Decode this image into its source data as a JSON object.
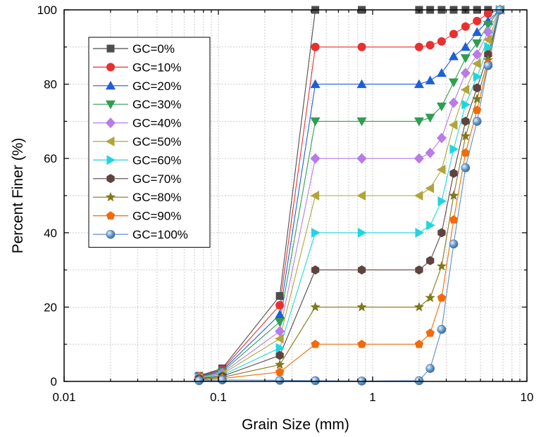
{
  "chart_data": {
    "type": "line",
    "xlabel": "Grain Size (mm)",
    "ylabel": "Percent Finer (%)",
    "x_scale": "log",
    "xlim": [
      0.01,
      10
    ],
    "ylim": [
      0,
      100
    ],
    "x_ticks": [
      0.01,
      0.1,
      1,
      10
    ],
    "x_tick_labels": [
      "0.01",
      "0.1",
      "1",
      "10"
    ],
    "y_ticks": [
      0,
      20,
      40,
      60,
      80,
      100
    ],
    "y_tick_labels": [
      "0",
      "20",
      "40",
      "60",
      "80",
      "100"
    ],
    "grid": true,
    "legend_position": "top-left",
    "x": [
      0.075,
      0.106,
      0.25,
      0.425,
      0.85,
      2.0,
      2.36,
      2.8,
      3.35,
      4.0,
      4.75,
      5.6,
      6.7
    ],
    "series": [
      {
        "name": "GC=0%",
        "color": "#4d4d4d",
        "marker": "square",
        "values": [
          1.5,
          3.5,
          23,
          100,
          100,
          100,
          100,
          100,
          100,
          100,
          100,
          100,
          100
        ]
      },
      {
        "name": "GC=10%",
        "color": "#e83030",
        "marker": "circle",
        "values": [
          1.4,
          3.2,
          20.5,
          90,
          90,
          90,
          90.5,
          91.5,
          93.5,
          95.5,
          97,
          99,
          100
        ]
      },
      {
        "name": "GC=20%",
        "color": "#1f5fd6",
        "marker": "triangle-up",
        "values": [
          1.3,
          2.9,
          18,
          80,
          80,
          80,
          81,
          83,
          87.5,
          90,
          94,
          97,
          100
        ]
      },
      {
        "name": "GC=30%",
        "color": "#2e9e4f",
        "marker": "triangle-down",
        "values": [
          1.2,
          2.6,
          16,
          70,
          70,
          70,
          71,
          74,
          80.5,
          87,
          91,
          96,
          100
        ]
      },
      {
        "name": "GC=40%",
        "color": "#b97be8",
        "marker": "diamond",
        "values": [
          1.1,
          2.3,
          13.5,
          60,
          60,
          60,
          61.5,
          65.5,
          75,
          83,
          88,
          94,
          100
        ]
      },
      {
        "name": "GC=50%",
        "color": "#b0a53b",
        "marker": "triangle-left",
        "values": [
          1.0,
          2.0,
          11.5,
          50,
          50,
          50,
          52,
          57,
          69,
          78.5,
          85.5,
          92,
          100
        ]
      },
      {
        "name": "GC=60%",
        "color": "#1fd6e0",
        "marker": "triangle-right",
        "values": [
          0.9,
          1.7,
          9,
          40,
          40,
          40,
          42,
          48.5,
          62.5,
          74.5,
          82,
          90,
          100
        ]
      },
      {
        "name": "GC=70%",
        "color": "#5e4340",
        "marker": "hexagon",
        "values": [
          0.8,
          1.4,
          7,
          30,
          30,
          30,
          32.5,
          40,
          56,
          70,
          79,
          88,
          100
        ]
      },
      {
        "name": "GC=80%",
        "color": "#7f7a1a",
        "marker": "star",
        "values": [
          0.6,
          1.1,
          4.5,
          20,
          20,
          20,
          22.5,
          31,
          50,
          66,
          76,
          86.5,
          100
        ]
      },
      {
        "name": "GC=90%",
        "color": "#f26a0a",
        "marker": "pentagon",
        "values": [
          0.4,
          0.8,
          2.5,
          10,
          10,
          10,
          13,
          22.5,
          43.5,
          61.5,
          73,
          85.5,
          100
        ]
      },
      {
        "name": "GC=100%",
        "color": "#5a8ec4",
        "marker": "sphere",
        "values": [
          0.2,
          0.4,
          0.3,
          0.2,
          0.1,
          0.2,
          3.5,
          14,
          37,
          57.5,
          70,
          85,
          100
        ]
      }
    ]
  }
}
